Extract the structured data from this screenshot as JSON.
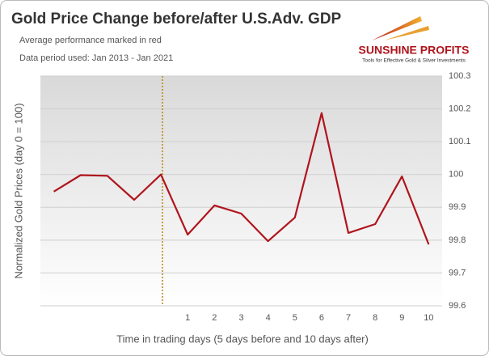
{
  "chart_data": {
    "type": "line",
    "title": "Gold Price Change before/after U.S.Adv. GDP",
    "subtitle": "Average performance marked in red",
    "note": "Data period used: Jan 2013 - Jan 2021",
    "logo": {
      "name": "SUNSHINE PROFITS",
      "tagline": "Tools for Effective Gold & Silver Investments"
    },
    "x_label": "Time in trading days  (5 days before and 10 days after)",
    "y_label": "Normalized Gold Prices (day 0 = 100)",
    "categories": [
      null,
      null,
      null,
      null,
      null,
      "1",
      "2",
      "3",
      "4",
      "5",
      "6",
      "7",
      "8",
      "9",
      "10"
    ],
    "values": [
      99.948,
      99.998,
      99.996,
      99.923,
      100.0,
      99.817,
      99.906,
      99.881,
      99.797,
      99.869,
      100.187,
      99.822,
      99.849,
      99.994,
      99.787
    ],
    "color": "#b0141c",
    "ylim": [
      99.6,
      100.3
    ],
    "yticks": [
      99.6,
      99.7,
      99.8,
      99.9,
      100,
      100.1,
      100.2,
      100.3
    ],
    "grid": true
  }
}
